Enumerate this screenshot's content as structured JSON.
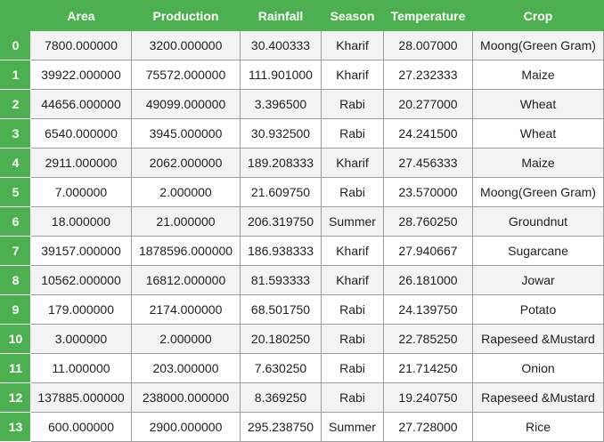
{
  "columns": [
    "",
    "Area",
    "Production",
    "Rainfall",
    "Season",
    "Temperature",
    "Crop"
  ],
  "rows": [
    {
      "index": "0",
      "area": "7800.000000",
      "production": "3200.000000",
      "rainfall": "30.400333",
      "season": "Kharif",
      "temperature": "28.007000",
      "crop": "Moong(Green Gram)"
    },
    {
      "index": "1",
      "area": "39922.000000",
      "production": "75572.000000",
      "rainfall": "111.901000",
      "season": "Kharif",
      "temperature": "27.232333",
      "crop": "Maize"
    },
    {
      "index": "2",
      "area": "44656.000000",
      "production": "49099.000000",
      "rainfall": "3.396500",
      "season": "Rabi",
      "temperature": "20.277000",
      "crop": "Wheat"
    },
    {
      "index": "3",
      "area": "6540.000000",
      "production": "3945.000000",
      "rainfall": "30.932500",
      "season": "Rabi",
      "temperature": "24.241500",
      "crop": "Wheat"
    },
    {
      "index": "4",
      "area": "2911.000000",
      "production": "2062.000000",
      "rainfall": "189.208333",
      "season": "Kharif",
      "temperature": "27.456333",
      "crop": "Maize"
    },
    {
      "index": "5",
      "area": "7.000000",
      "production": "2.000000",
      "rainfall": "21.609750",
      "season": "Rabi",
      "temperature": "23.570000",
      "crop": "Moong(Green Gram)"
    },
    {
      "index": "6",
      "area": "18.000000",
      "production": "21.000000",
      "rainfall": "206.319750",
      "season": "Summer",
      "temperature": "28.760250",
      "crop": "Groundnut"
    },
    {
      "index": "7",
      "area": "39157.000000",
      "production": "1878596.000000",
      "rainfall": "186.938333",
      "season": "Kharif",
      "temperature": "27.940667",
      "crop": "Sugarcane"
    },
    {
      "index": "8",
      "area": "10562.000000",
      "production": "16812.000000",
      "rainfall": "81.593333",
      "season": "Kharif",
      "temperature": "26.181000",
      "crop": "Jowar"
    },
    {
      "index": "9",
      "area": "179.000000",
      "production": "2174.000000",
      "rainfall": "68.501750",
      "season": "Rabi",
      "temperature": "24.139750",
      "crop": "Potato"
    },
    {
      "index": "10",
      "area": "3.000000",
      "production": "2.000000",
      "rainfall": "20.180250",
      "season": "Rabi",
      "temperature": "22.785250",
      "crop": "Rapeseed &Mustard"
    },
    {
      "index": "11",
      "area": "11.000000",
      "production": "203.000000",
      "rainfall": "7.630250",
      "season": "Rabi",
      "temperature": "21.714250",
      "crop": "Onion"
    },
    {
      "index": "12",
      "area": "137885.000000",
      "production": "238000.000000",
      "rainfall": "8.369250",
      "season": "Rabi",
      "temperature": "19.240750",
      "crop": "Rapeseed &Mustard"
    },
    {
      "index": "13",
      "area": "600.000000",
      "production": "2900.000000",
      "rainfall": "295.238750",
      "season": "Summer",
      "temperature": "27.728000",
      "crop": "Rice"
    }
  ],
  "colors": {
    "header_bg": "#4caf50",
    "header_text": "#ffffff",
    "cell_border": "#9e9e9e",
    "odd_row_bg": "#f3f3f3",
    "even_row_bg": "#ffffff"
  }
}
